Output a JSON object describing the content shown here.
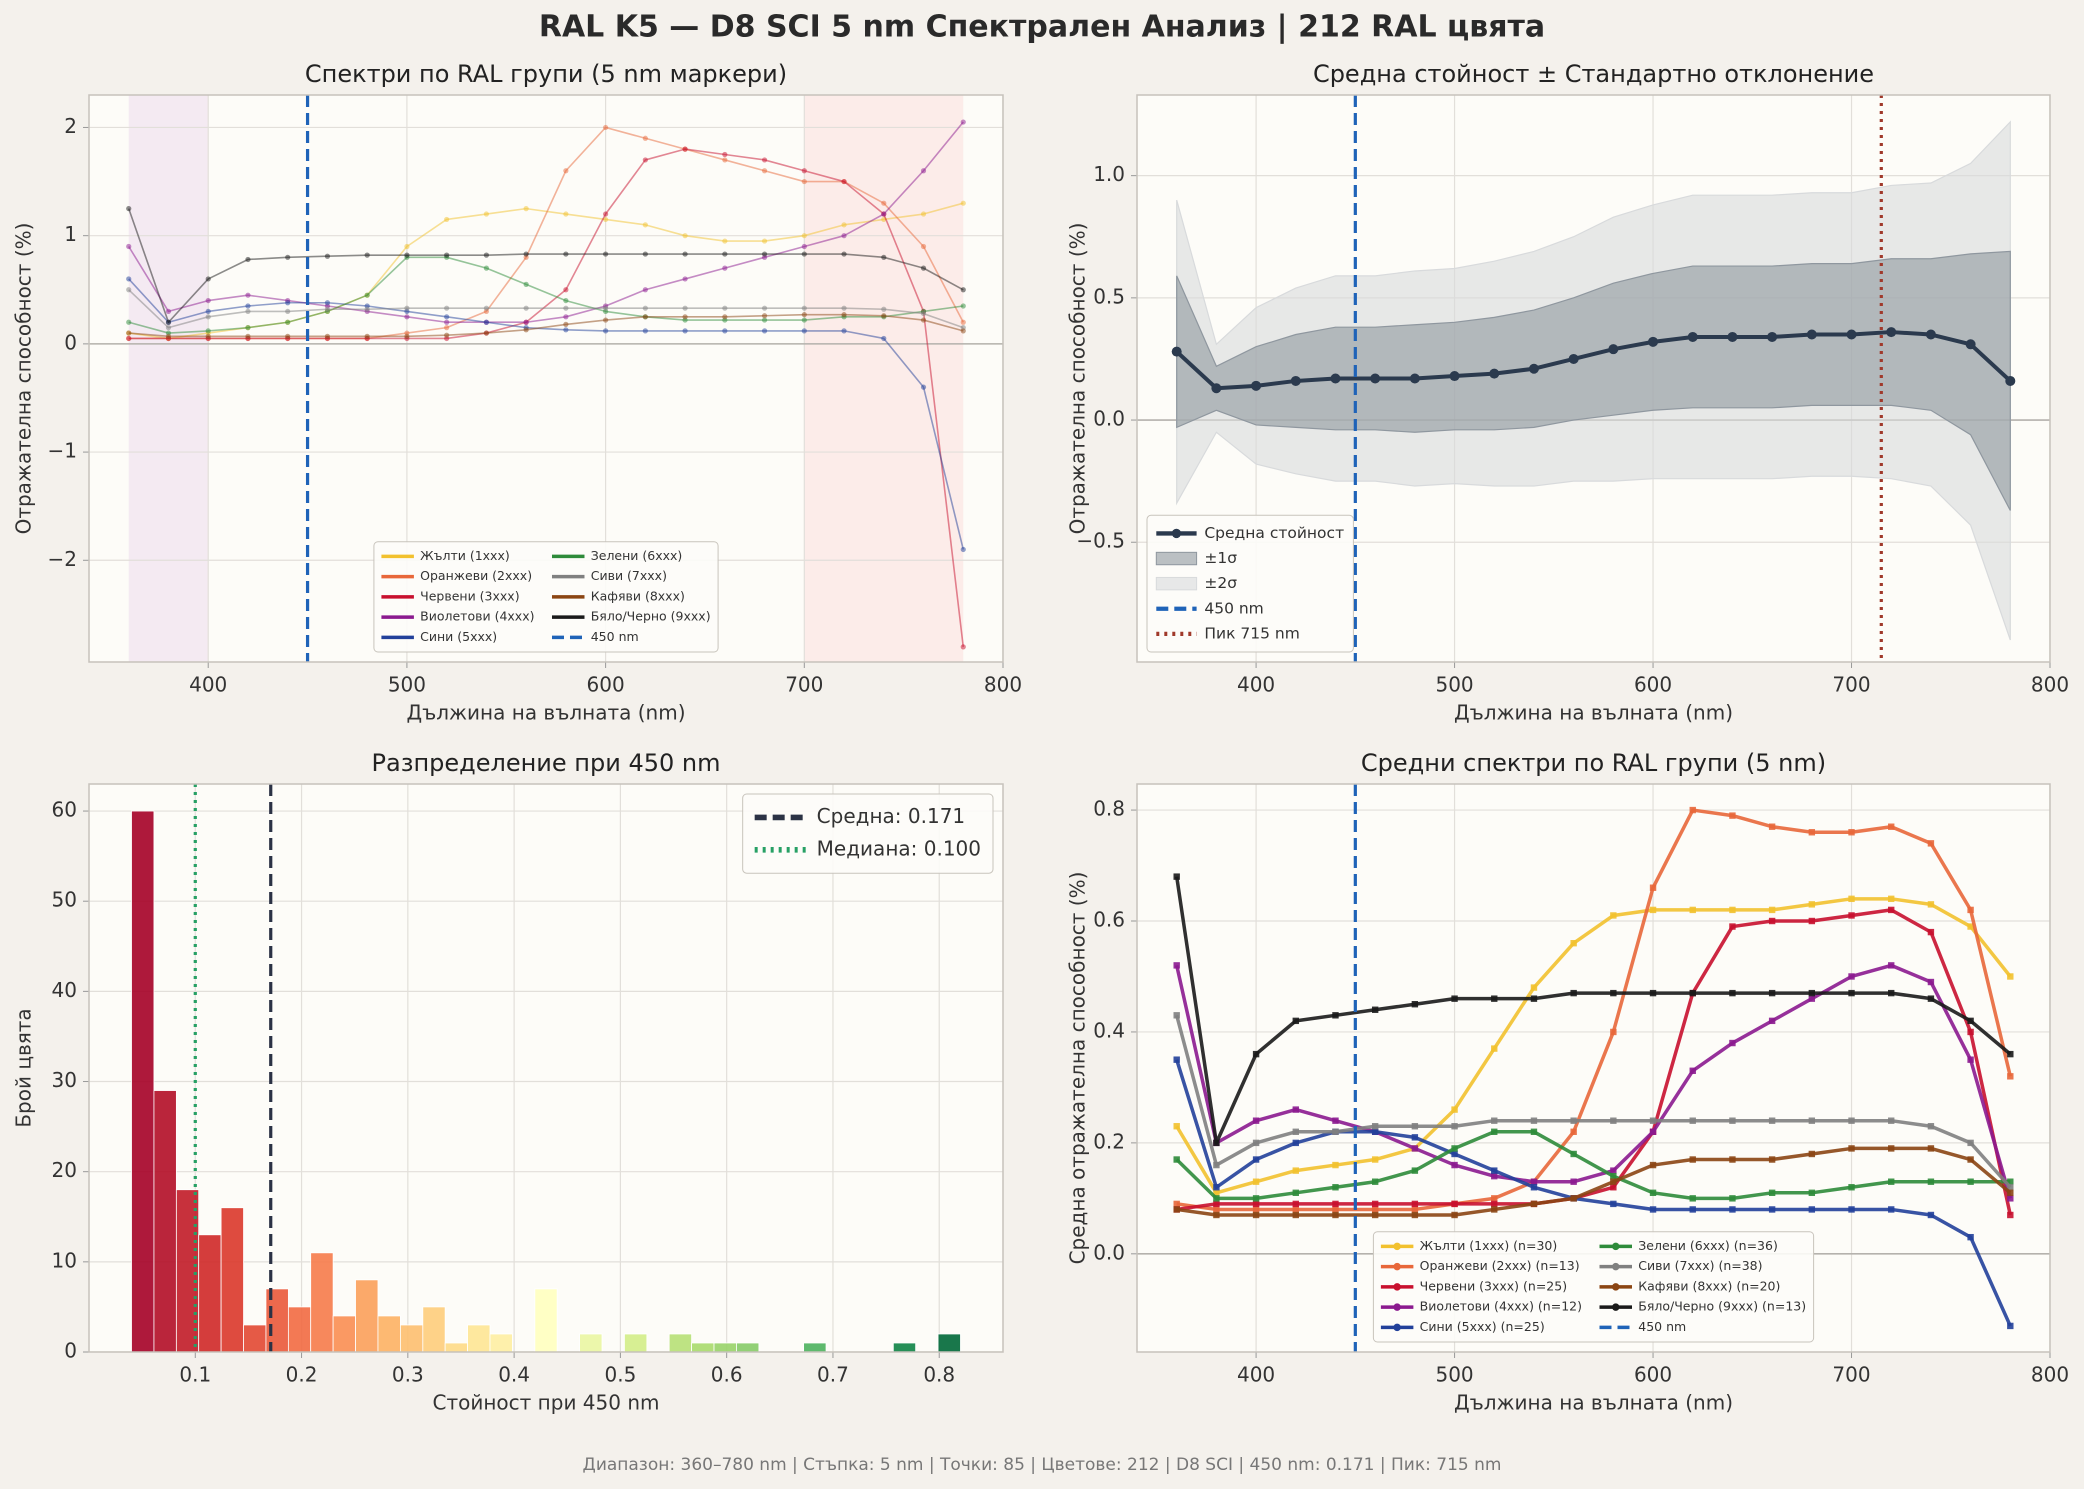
{
  "title": "RAL K5 — D8 SCI 5 nm Спектрален Анализ  |  212 RAL цвята",
  "footer": "Диапазон: 360–780 nm  |  Стъпка: 5 nm  |  Точки: 85  |  Цветове: 212  |  D8 SCI  |  450 nm: 0.171  |  Пик: 715 nm",
  "chart_data": [
    {
      "type": "line",
      "title": "Спектри по RAL групи (5 nm маркери)",
      "xlabel": "Дължина на вълната (nm)",
      "ylabel": "Отражателна способност (%)",
      "x": [
        360,
        380,
        400,
        420,
        440,
        460,
        480,
        500,
        520,
        540,
        560,
        580,
        600,
        620,
        640,
        660,
        680,
        700,
        720,
        740,
        760,
        780
      ],
      "series": [
        {
          "name": "Жълти (1xxx)",
          "color": "#f2c12e",
          "values": [
            0.1,
            0.05,
            0.1,
            0.15,
            0.2,
            0.3,
            0.45,
            0.9,
            1.15,
            1.2,
            1.25,
            1.2,
            1.15,
            1.1,
            1.0,
            0.95,
            0.95,
            1.0,
            1.1,
            1.15,
            1.2,
            1.3
          ]
        },
        {
          "name": "Оранжеви (2xxx)",
          "color": "#e8673a",
          "values": [
            0.05,
            0.05,
            0.05,
            0.05,
            0.05,
            0.05,
            0.05,
            0.1,
            0.15,
            0.3,
            0.8,
            1.6,
            2.0,
            1.9,
            1.8,
            1.7,
            1.6,
            1.5,
            1.5,
            1.3,
            0.9,
            0.2
          ]
        },
        {
          "name": "Червени (3xxx)",
          "color": "#c8102e",
          "values": [
            0.05,
            0.05,
            0.05,
            0.05,
            0.05,
            0.05,
            0.05,
            0.05,
            0.05,
            0.1,
            0.2,
            0.5,
            1.2,
            1.7,
            1.8,
            1.75,
            1.7,
            1.6,
            1.5,
            1.2,
            0.3,
            -2.8
          ]
        },
        {
          "name": "Виолетови (4xxx)",
          "color": "#8b1a8f",
          "values": [
            0.9,
            0.3,
            0.4,
            0.45,
            0.4,
            0.35,
            0.3,
            0.25,
            0.2,
            0.2,
            0.2,
            0.25,
            0.35,
            0.5,
            0.6,
            0.7,
            0.8,
            0.9,
            1.0,
            1.2,
            1.6,
            2.05
          ]
        },
        {
          "name": "Сини (5xxx)",
          "color": "#22409a",
          "values": [
            0.6,
            0.2,
            0.3,
            0.35,
            0.38,
            0.38,
            0.35,
            0.3,
            0.25,
            0.2,
            0.15,
            0.13,
            0.12,
            0.12,
            0.12,
            0.12,
            0.12,
            0.12,
            0.12,
            0.05,
            -0.4,
            -1.9
          ]
        },
        {
          "name": "Зелени (6xxx)",
          "color": "#2e8b3a",
          "values": [
            0.2,
            0.1,
            0.12,
            0.15,
            0.2,
            0.3,
            0.45,
            0.8,
            0.8,
            0.7,
            0.55,
            0.4,
            0.3,
            0.25,
            0.22,
            0.22,
            0.22,
            0.22,
            0.25,
            0.25,
            0.3,
            0.35
          ]
        },
        {
          "name": "Сиви (7xxx)",
          "color": "#808080",
          "values": [
            0.5,
            0.15,
            0.25,
            0.3,
            0.3,
            0.32,
            0.32,
            0.33,
            0.33,
            0.33,
            0.33,
            0.33,
            0.33,
            0.33,
            0.33,
            0.33,
            0.33,
            0.33,
            0.33,
            0.32,
            0.28,
            0.15
          ]
        },
        {
          "name": "Кафяви (8xxx)",
          "color": "#8b4513",
          "values": [
            0.1,
            0.07,
            0.07,
            0.07,
            0.07,
            0.07,
            0.07,
            0.07,
            0.08,
            0.1,
            0.13,
            0.18,
            0.22,
            0.25,
            0.25,
            0.25,
            0.26,
            0.27,
            0.27,
            0.26,
            0.22,
            0.12
          ]
        },
        {
          "name": "Бяло/Черно (9xxx)",
          "color": "#1a1a1a",
          "values": [
            1.25,
            0.2,
            0.6,
            0.78,
            0.8,
            0.81,
            0.82,
            0.82,
            0.82,
            0.82,
            0.83,
            0.83,
            0.83,
            0.83,
            0.83,
            0.83,
            0.83,
            0.83,
            0.83,
            0.8,
            0.7,
            0.5
          ]
        }
      ],
      "marker": "circle",
      "alpha": 0.5,
      "xlim": [
        340,
        800
      ],
      "ylim": [
        -2.94,
        2.3
      ],
      "xticks": [
        400,
        500,
        600,
        700,
        800
      ],
      "yticks": [
        {
          "value": -2,
          "label": "−2"
        },
        {
          "value": -1,
          "label": "−1"
        },
        0,
        1,
        2
      ],
      "grid": true,
      "hline": 0,
      "legend": "lower center",
      "shaded_regions": [
        {
          "x0": 360,
          "x1": 400,
          "color": "#efe2f0"
        },
        {
          "x0": 700,
          "x1": 780,
          "color": "#fbe6e3"
        }
      ],
      "vlines": [
        {
          "x": 450,
          "name": "450 nm",
          "color": "#1f63b8",
          "style": "dashed"
        }
      ]
    },
    {
      "type": "band",
      "title": "Средна стойност ± Стандартно отклонение",
      "xlabel": "Дължина на вълната (nm)",
      "ylabel": "Отражателна способност (%)",
      "x": [
        360,
        380,
        400,
        420,
        440,
        460,
        480,
        500,
        520,
        540,
        560,
        580,
        600,
        620,
        640,
        660,
        680,
        700,
        720,
        740,
        760,
        780
      ],
      "series": [
        {
          "name": "Средна стойност",
          "color": "#2b3a4e",
          "values": [
            0.28,
            0.13,
            0.14,
            0.16,
            0.17,
            0.17,
            0.17,
            0.18,
            0.19,
            0.21,
            0.25,
            0.29,
            0.32,
            0.34,
            0.34,
            0.34,
            0.35,
            0.35,
            0.36,
            0.35,
            0.31,
            0.16
          ]
        }
      ],
      "bands": [
        {
          "name": "±1σ",
          "color": "#8f979f",
          "upper": [
            0.59,
            0.22,
            0.3,
            0.35,
            0.38,
            0.38,
            0.39,
            0.4,
            0.42,
            0.45,
            0.5,
            0.56,
            0.6,
            0.63,
            0.63,
            0.63,
            0.64,
            0.64,
            0.66,
            0.66,
            0.68,
            0.69
          ],
          "lower": [
            -0.03,
            0.04,
            -0.02,
            -0.03,
            -0.04,
            -0.04,
            -0.05,
            -0.04,
            -0.04,
            -0.03,
            0.0,
            0.02,
            0.04,
            0.05,
            0.05,
            0.05,
            0.06,
            0.06,
            0.06,
            0.04,
            -0.06,
            -0.37
          ]
        },
        {
          "name": "±2σ",
          "color": "#d8dadc",
          "upper": [
            0.9,
            0.31,
            0.46,
            0.54,
            0.59,
            0.59,
            0.61,
            0.62,
            0.65,
            0.69,
            0.75,
            0.83,
            0.88,
            0.92,
            0.92,
            0.92,
            0.93,
            0.93,
            0.96,
            0.97,
            1.05,
            1.22
          ],
          "lower": [
            -0.34,
            -0.05,
            -0.18,
            -0.22,
            -0.25,
            -0.25,
            -0.27,
            -0.26,
            -0.27,
            -0.27,
            -0.25,
            -0.25,
            -0.24,
            -0.24,
            -0.24,
            -0.24,
            -0.23,
            -0.23,
            -0.24,
            -0.27,
            -0.43,
            -0.9
          ]
        }
      ],
      "marker": "circle",
      "alpha": 1,
      "xlim": [
        340,
        800
      ],
      "ylim": [
        -0.99,
        1.33
      ],
      "xticks": [
        400,
        500,
        600,
        700,
        800
      ],
      "yticks": [
        {
          "value": -0.5,
          "label": "−0.5"
        },
        {
          "value": 0,
          "label": "0.0"
        },
        {
          "value": 0.5,
          "label": "0.5"
        },
        {
          "value": 1,
          "label": "1.0"
        }
      ],
      "grid": true,
      "hline": 0,
      "legend": "lower left",
      "vlines": [
        {
          "x": 450,
          "name": "450 nm",
          "color": "#1f63b8",
          "style": "dashed"
        },
        {
          "x": 715,
          "name": "Пик 715 nm",
          "color": "#a0392b",
          "style": "dotted"
        }
      ]
    },
    {
      "type": "histogram",
      "title": "Разпределение при 450 nm",
      "xlabel": "Стойност при 450 nm",
      "ylabel": "Брой цвята",
      "bins": [
        0.04,
        0.0611,
        0.0822,
        0.1032,
        0.1243,
        0.1454,
        0.1665,
        0.1876,
        0.2086,
        0.2297,
        0.2508,
        0.2719,
        0.293,
        0.3141,
        0.3351,
        0.3562,
        0.3773,
        0.3984,
        0.4195,
        0.4405,
        0.4616,
        0.4827,
        0.5038,
        0.5249,
        0.5459,
        0.567,
        0.5881,
        0.6092,
        0.6303,
        0.6514,
        0.6724,
        0.6935,
        0.7146,
        0.7357,
        0.7568,
        0.7778,
        0.7989,
        0.82
      ],
      "counts": [
        60,
        29,
        18,
        13,
        16,
        3,
        7,
        5,
        11,
        4,
        8,
        4,
        3,
        5,
        1,
        3,
        2,
        0,
        7,
        0,
        2,
        0,
        2,
        0,
        2,
        1,
        1,
        1,
        0,
        0,
        1,
        0,
        0,
        0,
        1,
        0,
        2
      ],
      "colormap": [
        "#a50026",
        "#d73027",
        "#f46d43",
        "#fdae61",
        "#fee08b",
        "#ffffbf",
        "#d9ef8b",
        "#a6d96a",
        "#66bd63",
        "#1a9850",
        "#006837"
      ],
      "xlim": [
        0,
        0.86
      ],
      "ylim": [
        0,
        63
      ],
      "xticks": [
        0.1,
        0.2,
        0.3,
        0.4,
        0.5,
        0.6,
        0.7,
        0.8
      ],
      "yticks": [
        0,
        10,
        20,
        30,
        40,
        50,
        60
      ],
      "grid": true,
      "legend": "upper right",
      "vlines": [
        {
          "x": 0.171,
          "name": "Средна: 0.171",
          "color": "#2b3245",
          "style": "dashed"
        },
        {
          "x": 0.1,
          "name": "Медиана: 0.100",
          "color": "#27a065",
          "style": "dotted"
        }
      ]
    },
    {
      "type": "line",
      "title": "Средни спектри по RAL групи (5 nm)",
      "xlabel": "Дължина на вълната (nm)",
      "ylabel": "Средна отражателна способност (%)",
      "x": [
        360,
        380,
        400,
        420,
        440,
        460,
        480,
        500,
        520,
        540,
        560,
        580,
        600,
        620,
        640,
        660,
        680,
        700,
        720,
        740,
        760,
        780
      ],
      "series": [
        {
          "name": "Жълти (1xxx) (n=30)",
          "color": "#f2c12e",
          "values": [
            0.23,
            0.11,
            0.13,
            0.15,
            0.16,
            0.17,
            0.19,
            0.26,
            0.37,
            0.48,
            0.56,
            0.61,
            0.62,
            0.62,
            0.62,
            0.62,
            0.63,
            0.64,
            0.64,
            0.63,
            0.59,
            0.5
          ]
        },
        {
          "name": "Оранжеви (2xxx) (n=13)",
          "color": "#e8673a",
          "values": [
            0.09,
            0.08,
            0.08,
            0.08,
            0.08,
            0.08,
            0.08,
            0.09,
            0.1,
            0.13,
            0.22,
            0.4,
            0.66,
            0.8,
            0.79,
            0.77,
            0.76,
            0.76,
            0.77,
            0.74,
            0.62,
            0.32
          ]
        },
        {
          "name": "Червени (3xxx) (n=25)",
          "color": "#c8102e",
          "values": [
            0.08,
            0.09,
            0.09,
            0.09,
            0.09,
            0.09,
            0.09,
            0.09,
            0.09,
            0.09,
            0.1,
            0.12,
            0.22,
            0.47,
            0.59,
            0.6,
            0.6,
            0.61,
            0.62,
            0.58,
            0.4,
            0.07
          ]
        },
        {
          "name": "Виолетови (4xxx) (n=12)",
          "color": "#8b1a8f",
          "values": [
            0.52,
            0.2,
            0.24,
            0.26,
            0.24,
            0.22,
            0.19,
            0.16,
            0.14,
            0.13,
            0.13,
            0.15,
            0.22,
            0.33,
            0.38,
            0.42,
            0.46,
            0.5,
            0.52,
            0.49,
            0.35,
            0.1
          ]
        },
        {
          "name": "Сини (5xxx) (n=25)",
          "color": "#22409a",
          "values": [
            0.35,
            0.12,
            0.17,
            0.2,
            0.22,
            0.22,
            0.21,
            0.18,
            0.15,
            0.12,
            0.1,
            0.09,
            0.08,
            0.08,
            0.08,
            0.08,
            0.08,
            0.08,
            0.08,
            0.07,
            0.03,
            -0.13
          ]
        },
        {
          "name": "Зелени (6xxx) (n=36)",
          "color": "#2e8b3a",
          "values": [
            0.17,
            0.1,
            0.1,
            0.11,
            0.12,
            0.13,
            0.15,
            0.19,
            0.22,
            0.22,
            0.18,
            0.14,
            0.11,
            0.1,
            0.1,
            0.11,
            0.11,
            0.12,
            0.13,
            0.13,
            0.13,
            0.13
          ]
        },
        {
          "name": "Сиви (7xxx) (n=38)",
          "color": "#808080",
          "values": [
            0.43,
            0.16,
            0.2,
            0.22,
            0.22,
            0.23,
            0.23,
            0.23,
            0.24,
            0.24,
            0.24,
            0.24,
            0.24,
            0.24,
            0.24,
            0.24,
            0.24,
            0.24,
            0.24,
            0.23,
            0.2,
            0.12
          ]
        },
        {
          "name": "Кафяви (8xxx) (n=20)",
          "color": "#8b4513",
          "values": [
            0.08,
            0.07,
            0.07,
            0.07,
            0.07,
            0.07,
            0.07,
            0.07,
            0.08,
            0.09,
            0.1,
            0.13,
            0.16,
            0.17,
            0.17,
            0.17,
            0.18,
            0.19,
            0.19,
            0.19,
            0.17,
            0.11
          ]
        },
        {
          "name": "Бяло/Черно (9xxx) (n=13)",
          "color": "#1a1a1a",
          "values": [
            0.68,
            0.2,
            0.36,
            0.42,
            0.43,
            0.44,
            0.45,
            0.46,
            0.46,
            0.46,
            0.47,
            0.47,
            0.47,
            0.47,
            0.47,
            0.47,
            0.47,
            0.47,
            0.47,
            0.46,
            0.42,
            0.36
          ]
        }
      ],
      "marker": "square",
      "alpha": 0.9,
      "xlim": [
        340,
        800
      ],
      "ylim": [
        -0.177,
        0.847
      ],
      "xticks": [
        400,
        500,
        600,
        700,
        800
      ],
      "yticks": [
        {
          "value": 0,
          "label": "0.0"
        },
        {
          "value": 0.2,
          "label": "0.2"
        },
        {
          "value": 0.4,
          "label": "0.4"
        },
        {
          "value": 0.6,
          "label": "0.6"
        },
        {
          "value": 0.8,
          "label": "0.8"
        }
      ],
      "grid": true,
      "hline": 0,
      "legend": "lower center",
      "vlines": [
        {
          "x": 450,
          "name": "450 nm",
          "color": "#1f63b8",
          "style": "dashed"
        }
      ]
    }
  ]
}
